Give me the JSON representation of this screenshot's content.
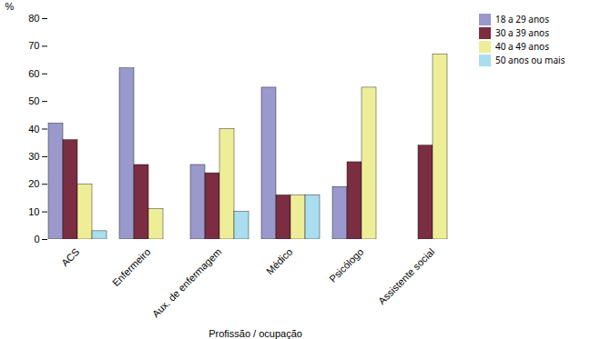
{
  "chart_data": {
    "type": "bar",
    "categories": [
      "ACS",
      "Enfermeiro",
      "Aux. de enfermagem",
      "Médico",
      "Psicólogo",
      "Assistente social"
    ],
    "series": [
      {
        "name": "18 a 29 anos",
        "color": "#9999cc",
        "values": [
          42,
          62,
          27,
          55,
          19,
          0
        ]
      },
      {
        "name": "30 a 39 anos",
        "color": "#7b2d42",
        "values": [
          36,
          27,
          24,
          16,
          28,
          34
        ]
      },
      {
        "name": "40 a 49 anos",
        "color": "#eeee99",
        "values": [
          20,
          11,
          40,
          16,
          55,
          67
        ]
      },
      {
        "name": "50 anos ou mais",
        "color": "#aaddee",
        "values": [
          3,
          0,
          10,
          16,
          0,
          0
        ]
      }
    ],
    "xlabel": "Profissão / ocupação",
    "ylabel": "%",
    "ylim": [
      0,
      80
    ],
    "yticks": [
      0,
      10,
      20,
      30,
      40,
      50,
      60,
      70,
      80
    ],
    "grid": false,
    "legend": "right"
  }
}
